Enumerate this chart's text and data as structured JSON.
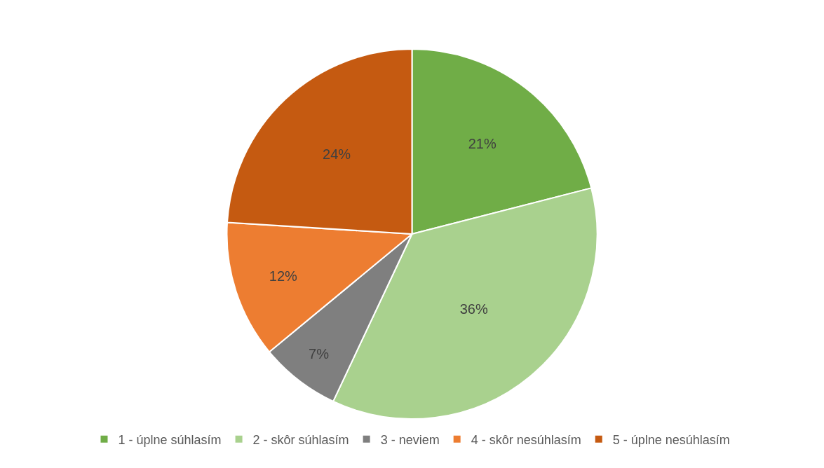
{
  "chart_data": {
    "type": "pie",
    "categories": [
      "1 - úplne súhlasím",
      "2 - skôr súhlasím",
      "3 - neviem",
      "4 - skôr nesúhlasím",
      "5 - úplne nesúhlasím"
    ],
    "values": [
      21,
      36,
      7,
      12,
      24
    ],
    "colors": [
      "#70ad47",
      "#a9d18e",
      "#7f7f7f",
      "#ed7d31",
      "#c55a11"
    ],
    "value_labels": [
      "21%",
      "36%",
      "7%",
      "12%",
      "24%"
    ],
    "legend": "bottom"
  }
}
